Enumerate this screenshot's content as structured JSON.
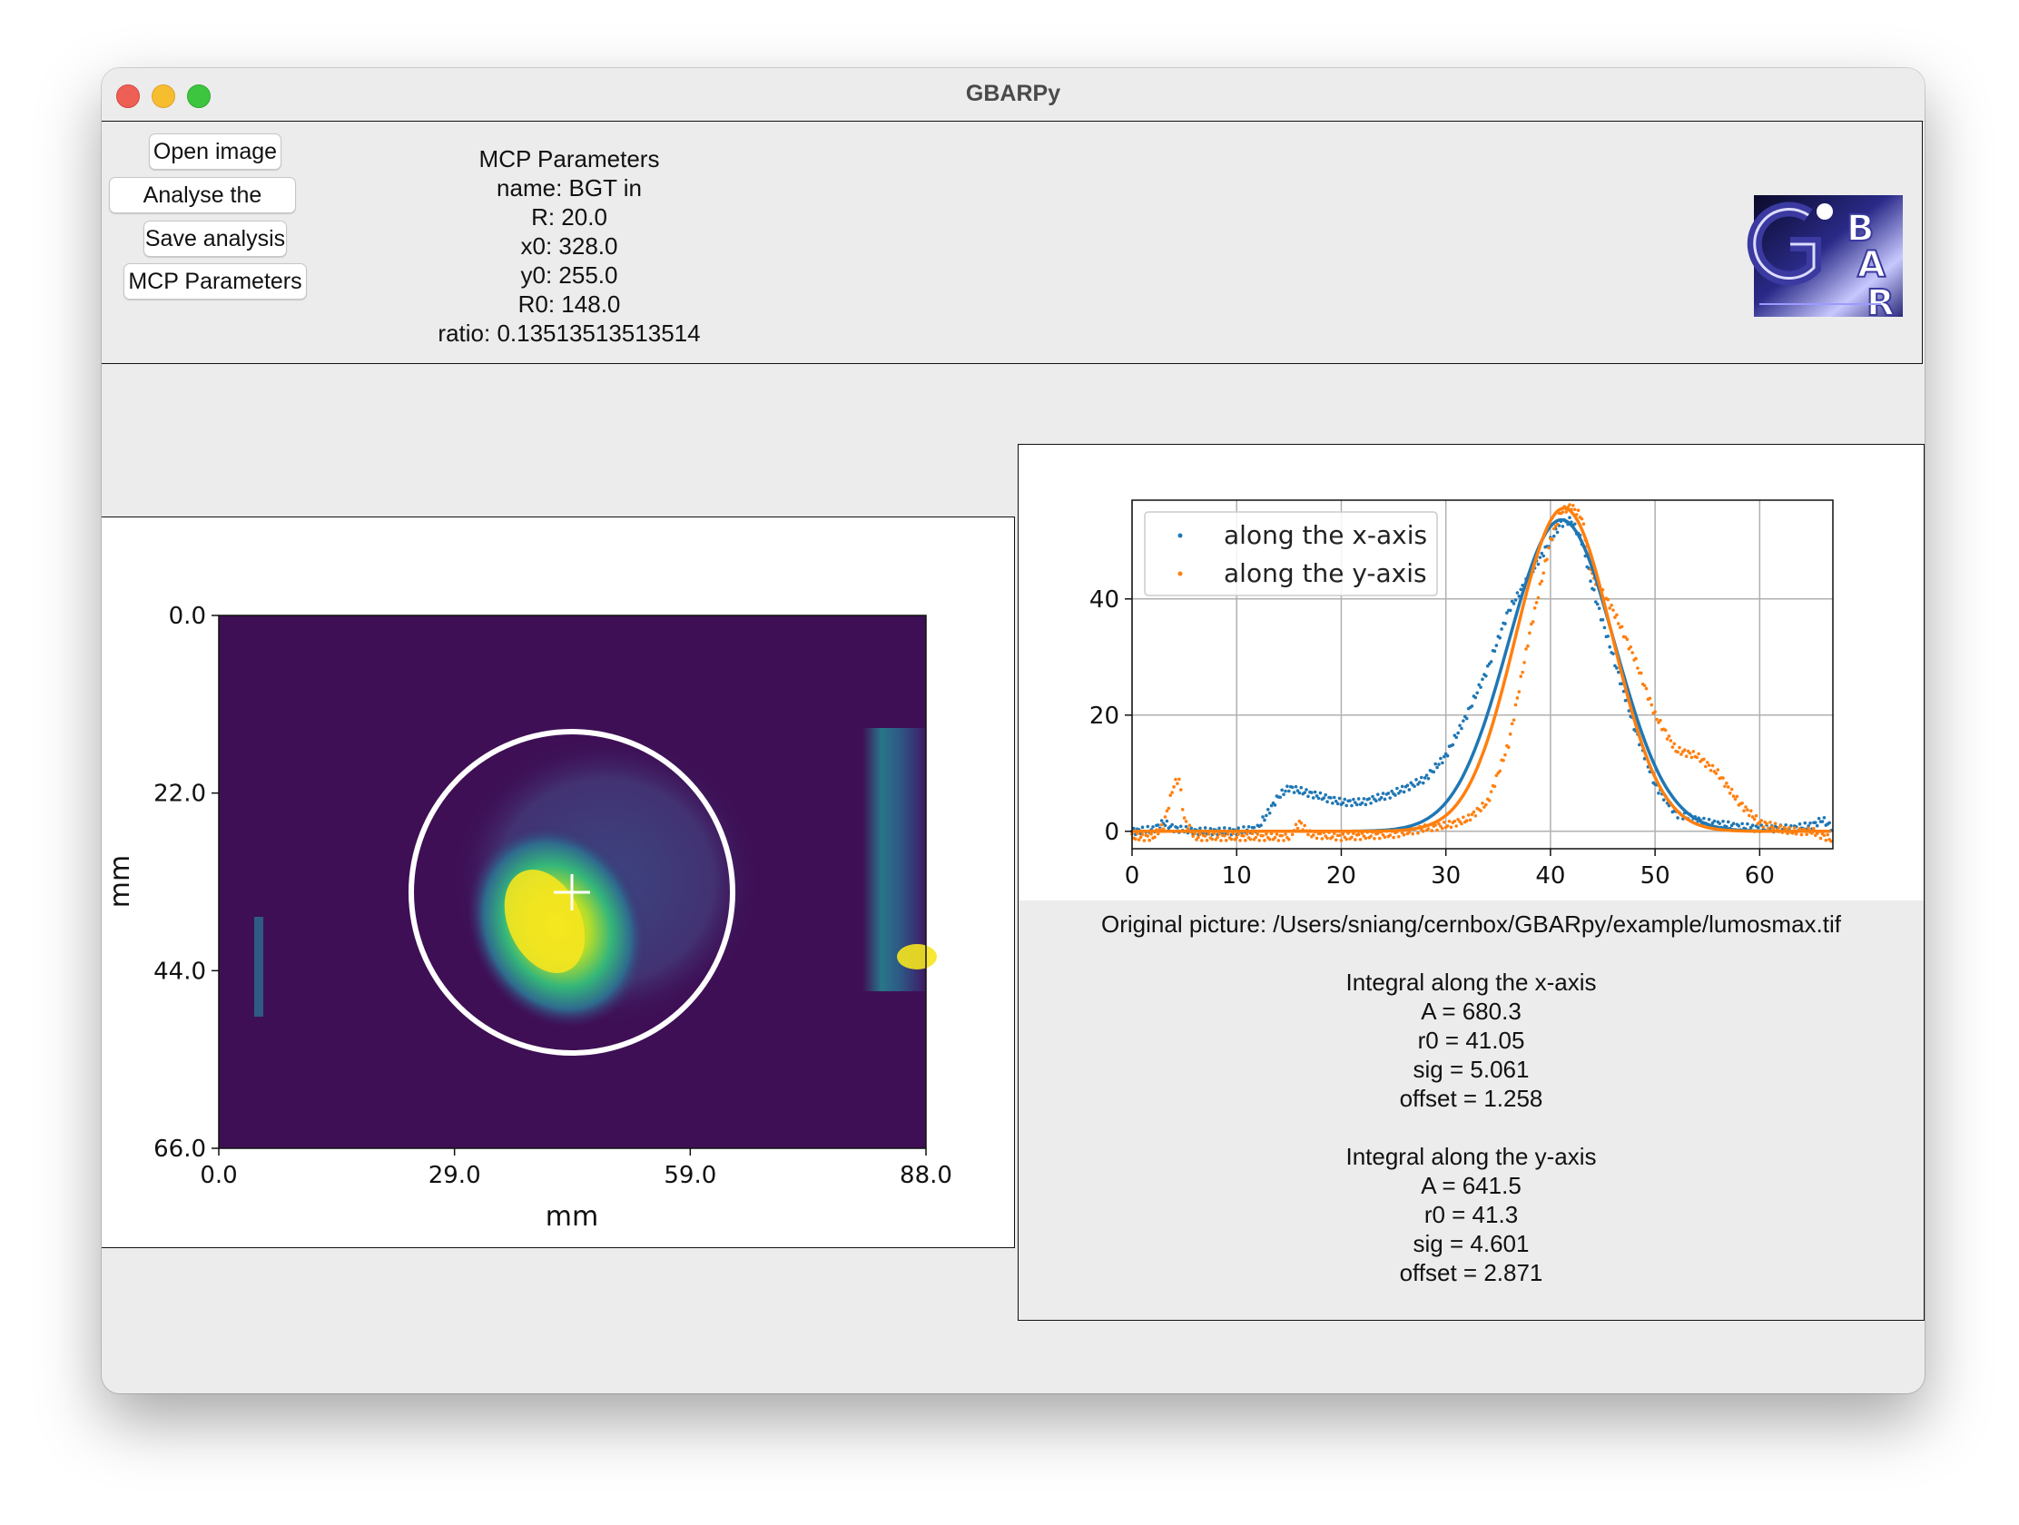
{
  "window": {
    "title": "GBARPy"
  },
  "toolbar": {
    "open_image": "Open image",
    "analyse": "Analyse the picture",
    "save": "Save analysis",
    "mcp_params": "MCP Parameters"
  },
  "mcp": {
    "heading": "MCP Parameters",
    "name": "name: BGT in",
    "R": "R: 20.0",
    "x0": "x0: 328.0",
    "y0": "y0: 255.0",
    "R0": "R0: 148.0",
    "ratio": "ratio: 0.13513513513514"
  },
  "image_plot": {
    "xlabel": "mm",
    "ylabel": "mm",
    "xticks": [
      "0.0",
      "29.0",
      "59.0",
      "88.0"
    ],
    "yticks": [
      "0.0",
      "22.0",
      "44.0",
      "66.0"
    ],
    "colors": {
      "background": "#3e0f55",
      "bright": "#f5e61f"
    }
  },
  "chart_data": {
    "type": "scatter",
    "xlim": [
      0,
      67
    ],
    "ylim": [
      -3,
      57
    ],
    "xticks": [
      0,
      10,
      20,
      30,
      40,
      50,
      60
    ],
    "yticks": [
      0,
      20,
      40
    ],
    "grid": true,
    "legend_position": "top-left",
    "series": [
      {
        "name": "along the x-axis",
        "color": "#1f77b4",
        "points": [
          [
            0,
            0
          ],
          [
            2,
            0.3
          ],
          [
            3,
            1.5
          ],
          [
            4,
            0.5
          ],
          [
            6,
            0
          ],
          [
            10,
            0
          ],
          [
            12,
            0.5
          ],
          [
            14,
            6
          ],
          [
            15,
            7.5
          ],
          [
            17,
            6.5
          ],
          [
            20,
            5
          ],
          [
            22,
            5
          ],
          [
            25,
            6.5
          ],
          [
            28,
            9
          ],
          [
            30,
            13
          ],
          [
            32,
            20
          ],
          [
            34,
            28
          ],
          [
            36,
            38
          ],
          [
            38,
            44
          ],
          [
            40,
            50
          ],
          [
            41,
            53
          ],
          [
            42,
            53.5
          ],
          [
            43,
            50
          ],
          [
            44,
            42
          ],
          [
            46,
            30
          ],
          [
            48,
            18
          ],
          [
            50,
            8
          ],
          [
            52,
            3
          ],
          [
            55,
            1.5
          ],
          [
            58,
            0.8
          ],
          [
            60,
            0.5
          ],
          [
            63,
            0.5
          ],
          [
            65,
            1
          ],
          [
            66,
            2
          ],
          [
            67,
            0.5
          ]
        ],
        "fit": {
          "A": 680.3,
          "r0": 41.05,
          "sig": 5.061,
          "offset": 1.258
        }
      },
      {
        "name": "along the y-axis",
        "color": "#ff7f0e",
        "points": [
          [
            0,
            -1
          ],
          [
            2,
            -1
          ],
          [
            3,
            1
          ],
          [
            4,
            8
          ],
          [
            4.5,
            9
          ],
          [
            5,
            2
          ],
          [
            6,
            -1
          ],
          [
            10,
            -1
          ],
          [
            15,
            -1
          ],
          [
            16,
            1.5
          ],
          [
            17,
            -0.5
          ],
          [
            20,
            -1
          ],
          [
            25,
            -0.5
          ],
          [
            28,
            0.5
          ],
          [
            30,
            1
          ],
          [
            32,
            2
          ],
          [
            34,
            5
          ],
          [
            36,
            15
          ],
          [
            38,
            34
          ],
          [
            40,
            50
          ],
          [
            41,
            55
          ],
          [
            42,
            56
          ],
          [
            43,
            54
          ],
          [
            44,
            44
          ],
          [
            46,
            38
          ],
          [
            48,
            30
          ],
          [
            50,
            20
          ],
          [
            52,
            14
          ],
          [
            54,
            13
          ],
          [
            56,
            10
          ],
          [
            58,
            5
          ],
          [
            60,
            1.5
          ],
          [
            63,
            0
          ],
          [
            65,
            0
          ],
          [
            67,
            -1.5
          ]
        ],
        "fit": {
          "A": 641.5,
          "r0": 41.3,
          "sig": 4.601,
          "offset": 2.871
        }
      }
    ]
  },
  "info": {
    "path": "Original picture: /Users/sniang/cernbox/GBARpy/example/lumosmax.tif",
    "x": {
      "title": "Integral along the x-axis",
      "A": "A  = 680.3",
      "r0": "r0 = 41.05",
      "sig": "sig = 5.061",
      "offset": "offset = 1.258"
    },
    "y": {
      "title": "Integral along the y-axis",
      "A": "A  = 641.5",
      "r0": "r0 = 41.3",
      "sig": "sig = 4.601",
      "offset": "offset = 2.871"
    }
  }
}
